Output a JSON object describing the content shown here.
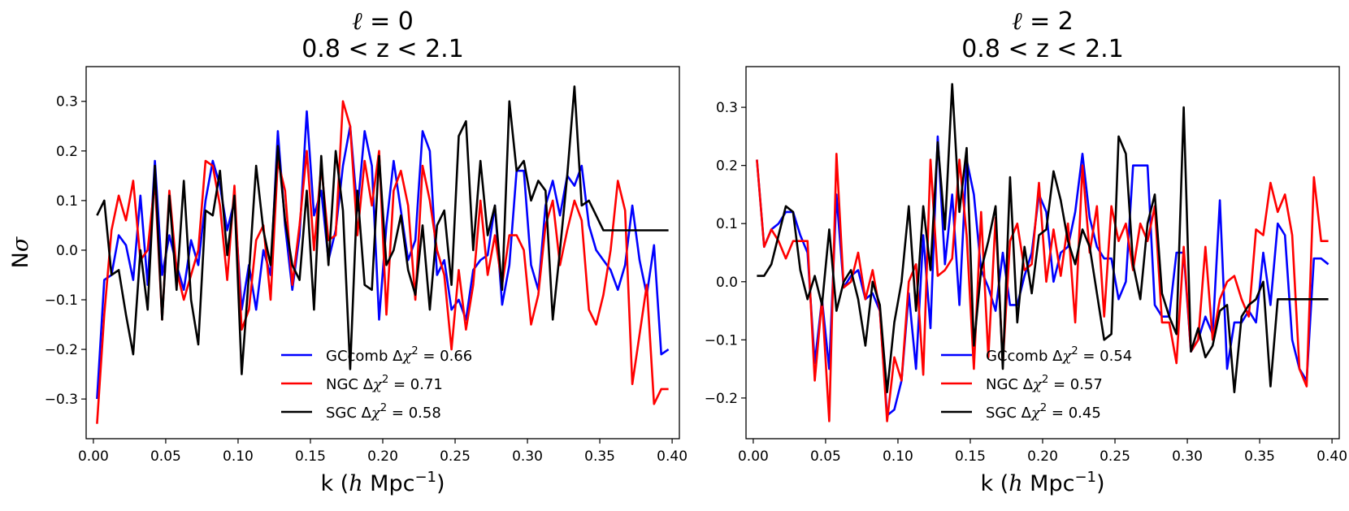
{
  "chart_data": [
    {
      "type": "line",
      "title": "ℓ = 0",
      "title_ell": "ℓ",
      "title_eq": " = 0",
      "subtitle": "0.8 < z < 2.1",
      "xlabel": "k (h Mpc⁻¹)",
      "xlabel_pre": "k (",
      "xlabel_h": "h",
      "xlabel_mid": " Mpc",
      "xlabel_sup": "−1",
      "xlabel_post": ")",
      "ylabel": "Nσ",
      "ylabel_pre": "N",
      "ylabel_sigma": "σ",
      "xlim": [
        -0.005,
        0.405
      ],
      "ylim": [
        -0.38,
        0.37
      ],
      "xticks": [
        0.0,
        0.05,
        0.1,
        0.15,
        0.2,
        0.25,
        0.3,
        0.35,
        0.4
      ],
      "xtick_labels": [
        "0.00",
        "0.05",
        "0.10",
        "0.15",
        "0.20",
        "0.25",
        "0.30",
        "0.35",
        "0.40"
      ],
      "yticks": [
        -0.3,
        -0.2,
        -0.1,
        0.0,
        0.1,
        0.2,
        0.3
      ],
      "ytick_labels": [
        "−0.3",
        "−0.2",
        "−0.1",
        "0.0",
        "0.1",
        "0.2",
        "0.3"
      ],
      "grid": false,
      "legend_position": "lower-center",
      "x": [
        0.0025,
        0.0075,
        0.0125,
        0.0175,
        0.0225,
        0.0275,
        0.0325,
        0.0375,
        0.0425,
        0.0475,
        0.0525,
        0.0575,
        0.0625,
        0.0675,
        0.0725,
        0.0775,
        0.0825,
        0.0875,
        0.0925,
        0.0975,
        0.1025,
        0.1075,
        0.1125,
        0.1175,
        0.1225,
        0.1275,
        0.1325,
        0.1375,
        0.1425,
        0.1475,
        0.1525,
        0.1575,
        0.1625,
        0.1675,
        0.1725,
        0.1775,
        0.1825,
        0.1875,
        0.1925,
        0.1975,
        0.2025,
        0.2075,
        0.2125,
        0.2175,
        0.2225,
        0.2275,
        0.2325,
        0.2375,
        0.2425,
        0.2475,
        0.2525,
        0.2575,
        0.2625,
        0.2675,
        0.2725,
        0.2775,
        0.2825,
        0.2875,
        0.2925,
        0.2975,
        0.3025,
        0.3075,
        0.3125,
        0.3175,
        0.3225,
        0.3275,
        0.3325,
        0.3375,
        0.3425,
        0.3475,
        0.3525,
        0.3575,
        0.3625,
        0.3675,
        0.3725,
        0.3775,
        0.3825,
        0.3875,
        0.3925,
        0.3975
      ],
      "series": [
        {
          "name": "GCcomb",
          "delta_chi2": "0.66",
          "color": "#0000ff",
          "values": [
            -0.3,
            -0.06,
            -0.05,
            0.03,
            0.01,
            -0.06,
            0.11,
            -0.07,
            0.18,
            -0.05,
            0.03,
            -0.03,
            -0.08,
            0.02,
            -0.03,
            0.1,
            0.18,
            0.13,
            0.04,
            0.1,
            -0.12,
            -0.03,
            -0.12,
            0.0,
            -0.05,
            0.24,
            0.05,
            -0.08,
            0.03,
            0.28,
            0.07,
            0.12,
            -0.02,
            0.04,
            0.17,
            0.25,
            0.08,
            0.24,
            0.17,
            -0.14,
            0.05,
            0.18,
            0.08,
            -0.02,
            0.02,
            0.24,
            0.2,
            -0.05,
            -0.02,
            -0.12,
            -0.1,
            -0.14,
            -0.04,
            -0.02,
            -0.01,
            0.09,
            -0.11,
            -0.03,
            0.16,
            0.16,
            -0.03,
            -0.08,
            0.09,
            0.14,
            0.07,
            0.15,
            0.13,
            0.17,
            0.05,
            0.0,
            -0.02,
            -0.04,
            -0.08,
            -0.03,
            0.09,
            -0.02,
            -0.09,
            0.01,
            -0.21,
            -0.2
          ]
        },
        {
          "name": "NGC",
          "delta_chi2": "0.71",
          "color": "#ff0000",
          "values": [
            -0.35,
            -0.13,
            0.04,
            0.11,
            0.06,
            0.14,
            -0.02,
            0.0,
            0.14,
            -0.14,
            0.12,
            -0.04,
            -0.1,
            -0.05,
            0.0,
            0.18,
            0.17,
            0.09,
            -0.06,
            0.13,
            -0.16,
            -0.12,
            0.02,
            0.05,
            -0.1,
            0.18,
            0.12,
            -0.07,
            0.05,
            0.2,
            0.0,
            0.17,
            0.02,
            0.03,
            0.3,
            0.25,
            0.03,
            0.18,
            0.09,
            0.2,
            -0.13,
            0.12,
            0.16,
            0.09,
            -0.1,
            0.17,
            0.1,
            0.0,
            -0.05,
            -0.2,
            -0.04,
            -0.16,
            -0.07,
            0.1,
            -0.05,
            0.03,
            -0.07,
            0.03,
            0.03,
            0.0,
            -0.15,
            -0.09,
            0.05,
            0.1,
            -0.03,
            0.04,
            0.1,
            0.06,
            -0.12,
            -0.15,
            -0.09,
            0.0,
            0.14,
            0.08,
            -0.27,
            -0.17,
            -0.07,
            -0.31,
            -0.28,
            -0.28
          ]
        },
        {
          "name": "SGC",
          "delta_chi2": "0.58",
          "color": "#000000",
          "values": [
            0.07,
            0.1,
            -0.05,
            -0.04,
            -0.13,
            -0.21,
            0.0,
            -0.12,
            0.17,
            -0.14,
            0.11,
            -0.08,
            0.14,
            -0.1,
            -0.19,
            0.08,
            0.07,
            0.16,
            -0.01,
            0.11,
            -0.25,
            -0.05,
            0.17,
            0.04,
            -0.03,
            0.21,
            0.06,
            -0.03,
            -0.06,
            0.12,
            -0.12,
            0.19,
            -0.03,
            0.2,
            0.08,
            -0.24,
            0.12,
            -0.07,
            -0.08,
            0.19,
            -0.03,
            0.0,
            0.07,
            -0.04,
            -0.09,
            0.05,
            -0.12,
            0.05,
            0.08,
            -0.07,
            0.23,
            0.26,
            0.0,
            0.18,
            0.03,
            0.09,
            -0.08,
            0.3,
            0.16,
            0.18,
            0.1,
            0.14,
            0.12,
            -0.14,
            0.0,
            0.15,
            0.33,
            0.09,
            0.1,
            0.07,
            0.04,
            0.04,
            0.04,
            0.04,
            0.04,
            0.04,
            0.04,
            0.04,
            0.04,
            0.04
          ]
        }
      ]
    },
    {
      "type": "line",
      "title": "ℓ = 2",
      "title_ell": "ℓ",
      "title_eq": " = 2",
      "subtitle": "0.8 < z < 2.1",
      "xlabel": "k (h Mpc⁻¹)",
      "xlabel_pre": "k (",
      "xlabel_h": "h",
      "xlabel_mid": " Mpc",
      "xlabel_sup": "−1",
      "xlabel_post": ")",
      "ylabel": "",
      "xlim": [
        -0.005,
        0.405
      ],
      "ylim": [
        -0.27,
        0.37
      ],
      "xticks": [
        0.0,
        0.05,
        0.1,
        0.15,
        0.2,
        0.25,
        0.3,
        0.35,
        0.4
      ],
      "xtick_labels": [
        "0.00",
        "0.05",
        "0.10",
        "0.15",
        "0.20",
        "0.25",
        "0.30",
        "0.35",
        "0.40"
      ],
      "yticks": [
        -0.2,
        -0.1,
        0.0,
        0.1,
        0.2,
        0.3
      ],
      "ytick_labels": [
        "−0.2",
        "−0.1",
        "0.0",
        "0.1",
        "0.2",
        "0.3"
      ],
      "grid": false,
      "legend_position": "lower-center",
      "x": [
        0.0025,
        0.0075,
        0.0125,
        0.0175,
        0.0225,
        0.0275,
        0.0325,
        0.0375,
        0.0425,
        0.0475,
        0.0525,
        0.0575,
        0.0625,
        0.0675,
        0.0725,
        0.0775,
        0.0825,
        0.0875,
        0.0925,
        0.0975,
        0.1025,
        0.1075,
        0.1125,
        0.1175,
        0.1225,
        0.1275,
        0.1325,
        0.1375,
        0.1425,
        0.1475,
        0.1525,
        0.1575,
        0.1625,
        0.1675,
        0.1725,
        0.1775,
        0.1825,
        0.1875,
        0.1925,
        0.1975,
        0.2025,
        0.2075,
        0.2125,
        0.2175,
        0.2225,
        0.2275,
        0.2325,
        0.2375,
        0.2425,
        0.2475,
        0.2525,
        0.2575,
        0.2625,
        0.2675,
        0.2725,
        0.2775,
        0.2825,
        0.2875,
        0.2925,
        0.2975,
        0.3025,
        0.3075,
        0.3125,
        0.3175,
        0.3225,
        0.3275,
        0.3325,
        0.3375,
        0.3425,
        0.3475,
        0.3525,
        0.3575,
        0.3625,
        0.3675,
        0.3725,
        0.3775,
        0.3825,
        0.3875,
        0.3925,
        0.3975
      ],
      "series": [
        {
          "name": "GCcomb",
          "delta_chi2": "0.54",
          "color": "#0000ff",
          "values": [
            0.21,
            0.06,
            0.09,
            0.1,
            0.12,
            0.12,
            0.08,
            0.05,
            -0.14,
            -0.03,
            -0.15,
            0.15,
            -0.01,
            0.01,
            0.02,
            -0.03,
            -0.02,
            -0.05,
            -0.23,
            -0.22,
            -0.17,
            -0.02,
            -0.15,
            0.08,
            -0.08,
            0.25,
            0.03,
            0.15,
            -0.04,
            0.21,
            0.15,
            0.02,
            -0.01,
            -0.05,
            0.05,
            -0.04,
            -0.04,
            0.01,
            0.05,
            0.15,
            0.12,
            0.0,
            0.05,
            0.06,
            0.12,
            0.22,
            0.11,
            0.06,
            0.04,
            0.04,
            -0.03,
            0.0,
            0.2,
            0.2,
            0.2,
            -0.04,
            -0.06,
            -0.06,
            0.05,
            0.05,
            -0.12,
            -0.1,
            -0.06,
            -0.09,
            0.14,
            -0.15,
            -0.07,
            -0.07,
            -0.05,
            -0.07,
            0.05,
            -0.04,
            0.1,
            0.08,
            -0.1,
            -0.15,
            -0.17,
            0.04,
            0.04,
            0.03
          ]
        },
        {
          "name": "NGC",
          "delta_chi2": "0.57",
          "color": "#ff0000",
          "values": [
            0.21,
            0.06,
            0.09,
            0.07,
            0.04,
            0.07,
            0.07,
            0.07,
            -0.17,
            -0.03,
            -0.24,
            0.22,
            -0.01,
            0.0,
            0.05,
            -0.03,
            0.02,
            -0.05,
            -0.24,
            -0.13,
            -0.17,
            0.0,
            0.03,
            -0.16,
            0.21,
            0.01,
            0.02,
            0.04,
            0.21,
            0.08,
            -0.15,
            0.12,
            -0.13,
            0.11,
            -0.14,
            0.07,
            0.1,
            0.02,
            0.03,
            0.17,
            0.0,
            0.09,
            0.01,
            0.1,
            -0.07,
            0.2,
            0.05,
            0.13,
            -0.06,
            0.13,
            0.07,
            0.1,
            0.02,
            0.1,
            0.07,
            0.13,
            -0.07,
            -0.07,
            -0.14,
            0.06,
            -0.12,
            -0.1,
            0.06,
            -0.1,
            -0.03,
            0.0,
            0.01,
            -0.03,
            -0.06,
            0.09,
            0.08,
            0.17,
            0.12,
            0.15,
            0.08,
            -0.15,
            -0.18,
            0.18,
            0.07,
            0.07
          ]
        },
        {
          "name": "SGC",
          "delta_chi2": "0.45",
          "color": "#000000",
          "values": [
            0.01,
            0.01,
            0.03,
            0.08,
            0.13,
            0.12,
            0.02,
            -0.03,
            0.01,
            -0.04,
            0.09,
            -0.05,
            0.0,
            0.02,
            -0.03,
            -0.11,
            0.0,
            -0.04,
            -0.19,
            -0.07,
            0.0,
            0.13,
            -0.05,
            0.13,
            0.02,
            0.24,
            0.09,
            0.34,
            0.12,
            0.23,
            -0.11,
            0.02,
            0.07,
            0.13,
            -0.15,
            0.18,
            -0.07,
            0.06,
            -0.02,
            0.08,
            0.09,
            0.19,
            0.14,
            0.07,
            0.03,
            0.09,
            0.06,
            -0.02,
            -0.1,
            -0.09,
            0.25,
            0.22,
            0.03,
            -0.03,
            0.1,
            0.15,
            -0.02,
            -0.06,
            -0.09,
            0.3,
            -0.12,
            -0.08,
            -0.13,
            -0.11,
            -0.05,
            -0.04,
            -0.19,
            -0.06,
            -0.04,
            -0.03,
            0.0,
            -0.18,
            -0.03,
            -0.03,
            -0.03,
            -0.03,
            -0.03,
            -0.03,
            -0.03,
            -0.03
          ]
        }
      ]
    }
  ]
}
